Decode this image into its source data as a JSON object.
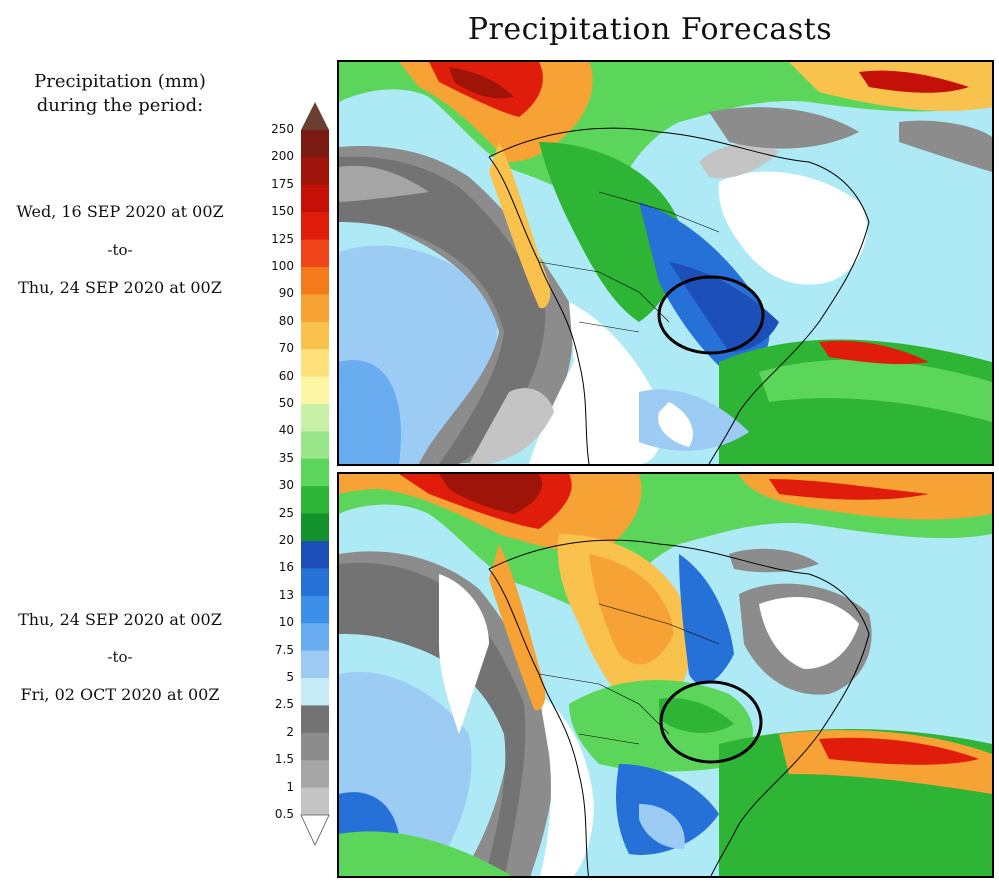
{
  "title": "Precipitation Forecasts",
  "legend": {
    "title_line1": "Precipitation (mm)",
    "title_line2": "during the period:",
    "levels": [
      {
        "label": "250",
        "color": "#6b3e32"
      },
      {
        "label": "200",
        "color": "#7a1a10"
      },
      {
        "label": "175",
        "color": "#9e1408"
      },
      {
        "label": "150",
        "color": "#c41006"
      },
      {
        "label": "125",
        "color": "#e01d0a"
      },
      {
        "label": "100",
        "color": "#f0441a"
      },
      {
        "label": "90",
        "color": "#f47a1c"
      },
      {
        "label": "80",
        "color": "#f7a234"
      },
      {
        "label": "70",
        "color": "#f9c24d"
      },
      {
        "label": "60",
        "color": "#fde07a"
      },
      {
        "label": "50",
        "color": "#fbf5a4"
      },
      {
        "label": "40",
        "color": "#c8f0a6"
      },
      {
        "label": "35",
        "color": "#98e58a"
      },
      {
        "label": "30",
        "color": "#5cd65a"
      },
      {
        "label": "25",
        "color": "#2fb536"
      },
      {
        "label": "20",
        "color": "#13912a"
      },
      {
        "label": "16",
        "color": "#1c4fb8"
      },
      {
        "label": "13",
        "color": "#2571d8"
      },
      {
        "label": "10",
        "color": "#3b8fe8"
      },
      {
        "label": "7.5",
        "color": "#6aacf0"
      },
      {
        "label": "5",
        "color": "#9ccbf4"
      },
      {
        "label": "2.5",
        "color": "#c5ecf6"
      },
      {
        "label": "2",
        "color": "#737373"
      },
      {
        "label": "1.5",
        "color": "#8c8c8c"
      },
      {
        "label": "1",
        "color": "#a5a5a5"
      },
      {
        "label": "0.5",
        "color": "#c4c4c4"
      }
    ]
  },
  "periods": [
    {
      "from": "Wed, 16 SEP 2020 at 00Z",
      "sep": "-to-",
      "to": "Thu, 24 SEP 2020 at 00Z"
    },
    {
      "from": "Thu, 24 SEP 2020 at 00Z",
      "sep": "-to-",
      "to": "Fri, 02 OCT 2020 at 00Z"
    }
  ]
}
